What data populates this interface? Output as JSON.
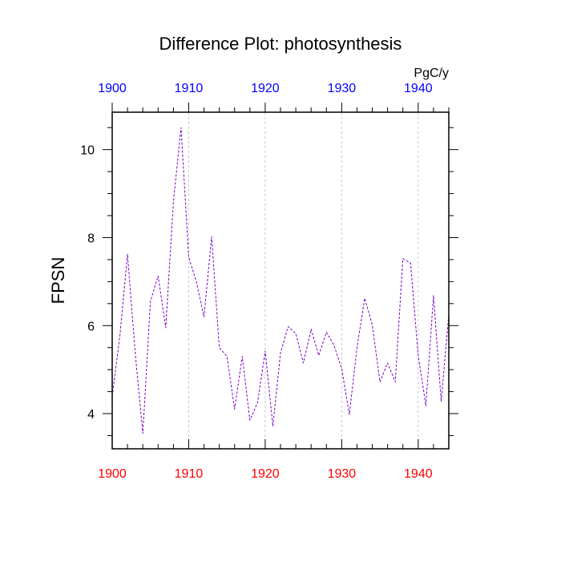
{
  "chart_data": {
    "type": "line",
    "title": "Difference Plot: photosynthesis",
    "ylabel": "FPSN",
    "units": "PgC/y",
    "xlim": [
      1900,
      1944
    ],
    "ylim": [
      3.2,
      10.85
    ],
    "xticks_major": [
      1900,
      1910,
      1920,
      1930,
      1940
    ],
    "xtick_labels": [
      "1900",
      "1910",
      "1920",
      "1930",
      "1940"
    ],
    "xticks_minor": [
      1902,
      1904,
      1906,
      1908,
      1912,
      1914,
      1916,
      1918,
      1922,
      1924,
      1926,
      1928,
      1932,
      1934,
      1936,
      1938,
      1942,
      1944
    ],
    "yticks_major": [
      4,
      6,
      8,
      10
    ],
    "ytick_labels": [
      "4",
      "6",
      "8",
      "10"
    ],
    "yticks_minor": [
      3.5,
      4.5,
      5,
      5.5,
      6.5,
      7,
      7.5,
      8.5,
      9,
      9.5,
      10.5
    ],
    "grid": "vertical dashed at major ticks",
    "colors": {
      "line": "#7a00c8",
      "bottom_axis_labels": "#ff0000",
      "top_axis_labels": "#0000ff",
      "text": "#000000",
      "grid": "#bbbbbb"
    },
    "series": [
      {
        "name": "photosynthesis difference",
        "x": [
          1900,
          1901,
          1902,
          1903,
          1904,
          1905,
          1906,
          1907,
          1908,
          1909,
          1910,
          1911,
          1912,
          1913,
          1914,
          1915,
          1916,
          1917,
          1918,
          1919,
          1920,
          1921,
          1922,
          1923,
          1924,
          1925,
          1926,
          1927,
          1928,
          1929,
          1930,
          1931,
          1932,
          1933,
          1934,
          1935,
          1936,
          1937,
          1938,
          1939,
          1940,
          1941,
          1942,
          1943,
          1944
        ],
        "values": [
          4.4,
          5.75,
          7.62,
          5.4,
          3.55,
          6.55,
          7.13,
          5.95,
          8.82,
          10.5,
          7.55,
          7.0,
          6.2,
          8.02,
          5.5,
          5.3,
          4.1,
          5.3,
          3.85,
          4.25,
          5.42,
          3.72,
          5.38,
          5.98,
          5.82,
          5.15,
          5.92,
          5.32,
          5.85,
          5.55,
          5.02,
          3.98,
          5.5,
          6.62,
          6.02,
          4.72,
          5.15,
          4.72,
          7.52,
          7.42,
          5.32,
          4.18,
          6.68,
          4.28,
          6.25
        ]
      }
    ]
  }
}
